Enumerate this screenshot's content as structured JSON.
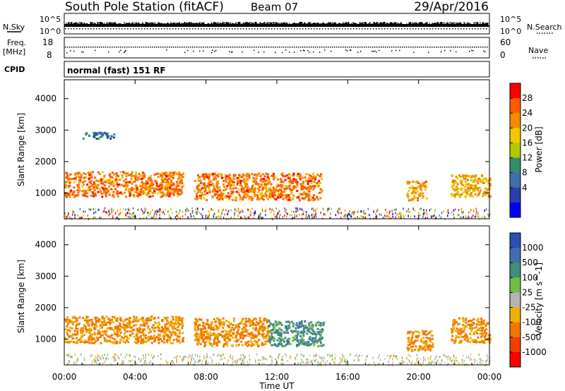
{
  "header": {
    "station": "South Pole Station (fitACF)",
    "beam": "Beam 07",
    "date": "29/Apr/2016"
  },
  "strip_panels": {
    "nsky_label": "N.Sky",
    "nsearch_label": "N.Search",
    "scale_top": "10^5",
    "scale_bottom": "10^0",
    "freq_label_line1": "Freq.",
    "freq_label_line2": "[MHz]",
    "freq_ticks": [
      "18",
      "8"
    ],
    "nave_label": "Nave",
    "nave_ticks": [
      "60",
      "0"
    ],
    "cpid_label": "CPID",
    "cpid_text": "normal (fast) 151 RF"
  },
  "x_axis": {
    "title": "Time UT",
    "ticks": [
      "00:00",
      "04:00",
      "08:00",
      "12:00",
      "16:00",
      "20:00",
      "00:00"
    ],
    "range_hours": [
      0,
      24
    ]
  },
  "y_axis": {
    "title": "Slant Range [km]",
    "ticks": [
      "1000",
      "2000",
      "3000",
      "4000"
    ],
    "range_km": [
      180,
      4600
    ]
  },
  "colorbars": {
    "power": {
      "title": "Power [dB]",
      "labels": [
        "28",
        "24",
        "20",
        "16",
        "12",
        "8",
        "4"
      ],
      "colors": [
        "#ff0000",
        "#ff5a00",
        "#f48c00",
        "#f0c800",
        "#b4c800",
        "#2f8f6f",
        "#3f6faf",
        "#2a3fa8",
        "#0000ff"
      ]
    },
    "velocity": {
      "title": "Velocity [m s^-1]",
      "labels": [
        "1000",
        "500",
        "100",
        "25",
        "-25",
        "-100",
        "-500",
        "-1000"
      ],
      "colors": [
        "#2b4fb5",
        "#3f6faf",
        "#3f8f7f",
        "#70c040",
        "#b4b4b4",
        "#f0b000",
        "#f07800",
        "#f04000",
        "#ff0000"
      ]
    }
  },
  "chart_data": [
    {
      "type": "heatmap",
      "title": "Power [dB]",
      "xlabel": "Time UT",
      "ylabel": "Slant Range [km]",
      "xlim": [
        0,
        24
      ],
      "ylim": [
        180,
        4600
      ],
      "colorbar_range": [
        0,
        30
      ],
      "blobs": [
        {
          "t0": 0.0,
          "t1": 6.7,
          "r0": 900,
          "r1": 1700,
          "value": 24
        },
        {
          "t0": 7.3,
          "t1": 14.5,
          "r0": 800,
          "r1": 1650,
          "value": 24
        },
        {
          "t0": 19.3,
          "t1": 20.4,
          "r0": 800,
          "r1": 1400,
          "value": 22
        },
        {
          "t0": 21.8,
          "t1": 24.0,
          "r0": 900,
          "r1": 1600,
          "value": 20
        },
        {
          "t0": 1.0,
          "t1": 2.8,
          "r0": 2750,
          "r1": 2950,
          "value": 8
        },
        {
          "t0": 0.0,
          "t1": 24.0,
          "r0": 200,
          "r1": 550,
          "value": 12
        }
      ]
    },
    {
      "type": "heatmap",
      "title": "Velocity [m s^-1]",
      "xlabel": "Time UT",
      "ylabel": "Slant Range [km]",
      "xlim": [
        0,
        24
      ],
      "ylim": [
        180,
        4600
      ],
      "colorbar_range": [
        -1000,
        1000
      ],
      "blobs": [
        {
          "t0": 0.0,
          "t1": 6.7,
          "r0": 900,
          "r1": 1750,
          "value": -150
        },
        {
          "t0": 7.3,
          "t1": 11.5,
          "r0": 800,
          "r1": 1700,
          "value": -100
        },
        {
          "t0": 11.5,
          "t1": 14.6,
          "r0": 800,
          "r1": 1600,
          "value": 150
        },
        {
          "t0": 19.3,
          "t1": 20.8,
          "r0": 650,
          "r1": 1300,
          "value": -200
        },
        {
          "t0": 21.8,
          "t1": 24.0,
          "r0": 900,
          "r1": 1700,
          "value": -150
        },
        {
          "t0": 0.0,
          "t1": 24.0,
          "r0": 200,
          "r1": 550,
          "value": 0
        }
      ]
    }
  ]
}
